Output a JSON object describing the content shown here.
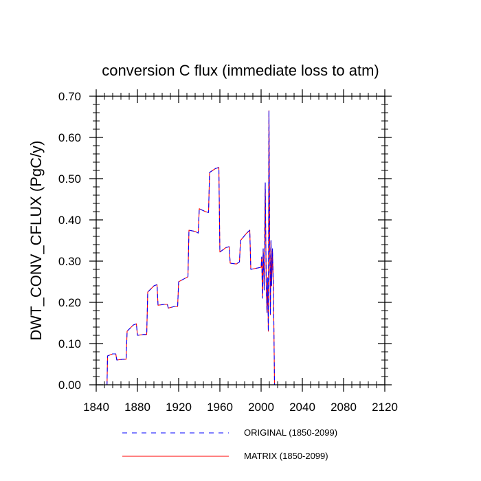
{
  "chart_data": {
    "type": "line",
    "title": "conversion C flux (immediate loss to atm)",
    "xlabel": "",
    "ylabel": "DWT_CONV_CFLUX  (PgC/y)",
    "xlim": [
      1840,
      2120
    ],
    "ylim": [
      0,
      0.7
    ],
    "xticks": [
      1840,
      1880,
      1920,
      1960,
      2000,
      2040,
      2080,
      2120
    ],
    "xtick_labels": [
      "1840",
      "1880",
      "1920",
      "1960",
      "2000",
      "2040",
      "2080",
      "2120"
    ],
    "yticks": [
      0,
      0.1,
      0.2,
      0.3,
      0.4,
      0.5,
      0.6,
      0.7
    ],
    "ytick_labels": [
      "0.00",
      "0.10",
      "0.20",
      "0.30",
      "0.40",
      "0.50",
      "0.60",
      "0.70"
    ],
    "grid": false,
    "legend_position": "bottom",
    "series": [
      {
        "name": "ORIGINAL (1850-2099)",
        "color": "#0000ff",
        "style": "dashed",
        "x": [
          1850,
          1850.5,
          1851,
          1856,
          1859,
          1860,
          1866,
          1869,
          1870,
          1876,
          1879,
          1880,
          1886,
          1889,
          1890,
          1896,
          1899,
          1900,
          1906,
          1909,
          1910,
          1916,
          1919,
          1920,
          1926,
          1929,
          1930,
          1936,
          1939,
          1940,
          1946,
          1949,
          1950,
          1956,
          1959,
          1960,
          1966,
          1969,
          1970,
          1976,
          1979,
          1980,
          1986,
          1989,
          1990,
          2000,
          2000.6,
          2001.3,
          2002,
          2003,
          2004,
          2005,
          2005.7,
          2006.4,
          2007,
          2007.6,
          2008.3,
          2009,
          2009.6,
          2010.2,
          2011,
          2011.7,
          2012.3,
          2013,
          2013.8,
          2014.5,
          2015.2,
          2016,
          2020,
          2060,
          2099
        ],
        "values": [
          0.0,
          0.0,
          0.07,
          0.075,
          0.075,
          0.06,
          0.062,
          0.062,
          0.13,
          0.145,
          0.148,
          0.12,
          0.122,
          0.122,
          0.225,
          0.24,
          0.243,
          0.193,
          0.195,
          0.195,
          0.186,
          0.19,
          0.19,
          0.25,
          0.258,
          0.262,
          0.375,
          0.372,
          0.368,
          0.427,
          0.42,
          0.418,
          0.515,
          0.525,
          0.527,
          0.322,
          0.333,
          0.335,
          0.295,
          0.293,
          0.298,
          0.35,
          0.368,
          0.375,
          0.28,
          0.285,
          0.31,
          0.21,
          0.33,
          0.23,
          0.49,
          0.24,
          0.175,
          0.26,
          0.13,
          0.665,
          0.36,
          0.17,
          0.35,
          0.24,
          0.33,
          0.26,
          0.16,
          0.0,
          0.0,
          0.0,
          0.0,
          0.0,
          0.0,
          0.0,
          0.0
        ]
      },
      {
        "name": "MATRIX (1850-2099)",
        "color": "#ff0000",
        "style": "solid",
        "x": [
          1850,
          1850.5,
          1851,
          1856,
          1859,
          1860,
          1866,
          1869,
          1870,
          1876,
          1879,
          1880,
          1886,
          1889,
          1890,
          1896,
          1899,
          1900,
          1906,
          1909,
          1910,
          1916,
          1919,
          1920,
          1926,
          1929,
          1930,
          1936,
          1939,
          1940,
          1946,
          1949,
          1950,
          1956,
          1959,
          1960,
          1966,
          1969,
          1970,
          1976,
          1979,
          1980,
          1986,
          1989,
          1990,
          2000,
          2000.6,
          2001.3,
          2002,
          2003,
          2004,
          2005,
          2005.7,
          2006.4,
          2007,
          2007.6,
          2008.3,
          2009,
          2009.6,
          2010.2,
          2011,
          2011.7,
          2012.3,
          2013,
          2013.8,
          2014.5,
          2015.2,
          2016,
          2020,
          2060,
          2099
        ],
        "values": [
          0.0,
          0.0,
          0.07,
          0.075,
          0.075,
          0.06,
          0.062,
          0.062,
          0.13,
          0.145,
          0.148,
          0.12,
          0.122,
          0.122,
          0.225,
          0.24,
          0.243,
          0.193,
          0.195,
          0.195,
          0.186,
          0.19,
          0.19,
          0.25,
          0.258,
          0.262,
          0.375,
          0.372,
          0.368,
          0.427,
          0.42,
          0.418,
          0.515,
          0.525,
          0.527,
          0.322,
          0.333,
          0.335,
          0.295,
          0.293,
          0.298,
          0.35,
          0.368,
          0.375,
          0.28,
          0.285,
          0.31,
          0.21,
          0.33,
          0.23,
          0.49,
          0.24,
          0.175,
          0.26,
          0.13,
          0.665,
          0.36,
          0.17,
          0.35,
          0.24,
          0.33,
          0.26,
          0.16,
          0.0,
          0.0,
          0.0,
          0.0,
          0.0,
          0.0,
          0.0,
          0.0
        ]
      }
    ]
  }
}
